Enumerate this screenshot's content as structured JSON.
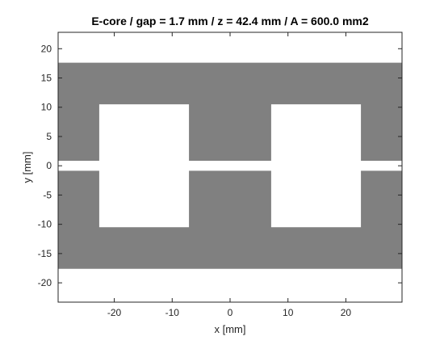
{
  "chart_data": {
    "type": "area",
    "title": "E-core / gap = 1.7 mm / z = 42.4 mm / A = 600.0 mm2",
    "xlabel": "x [mm]",
    "ylabel": "y [mm]",
    "xlim": [
      -29.7,
      29.7
    ],
    "ylim": [
      -23.3,
      22.8
    ],
    "xticks": [
      -20,
      -10,
      0,
      10,
      20
    ],
    "yticks": [
      20,
      15,
      10,
      5,
      0,
      -5,
      -10,
      -15,
      -20
    ],
    "grid": false,
    "fill_color": "#808080",
    "background_color": "#ffffff",
    "polygons": [
      {
        "part": "upper-core",
        "points": [
          [
            -29.7,
            0.85
          ],
          [
            -22.6,
            0.85
          ],
          [
            -22.6,
            10.5
          ],
          [
            -7.1,
            10.5
          ],
          [
            -7.1,
            0.85
          ],
          [
            7.1,
            0.85
          ],
          [
            7.1,
            10.5
          ],
          [
            22.6,
            10.5
          ],
          [
            22.6,
            0.85
          ],
          [
            29.7,
            0.85
          ],
          [
            29.7,
            17.6
          ],
          [
            -29.7,
            17.6
          ]
        ]
      },
      {
        "part": "lower-core",
        "points": [
          [
            -29.7,
            -0.85
          ],
          [
            -22.6,
            -0.85
          ],
          [
            -22.6,
            -10.5
          ],
          [
            -7.1,
            -10.5
          ],
          [
            -7.1,
            -0.85
          ],
          [
            7.1,
            -0.85
          ],
          [
            7.1,
            -10.5
          ],
          [
            22.6,
            -10.5
          ],
          [
            22.6,
            -0.85
          ],
          [
            29.7,
            -0.85
          ],
          [
            29.7,
            -17.6
          ],
          [
            -29.7,
            -17.6
          ]
        ]
      }
    ]
  }
}
